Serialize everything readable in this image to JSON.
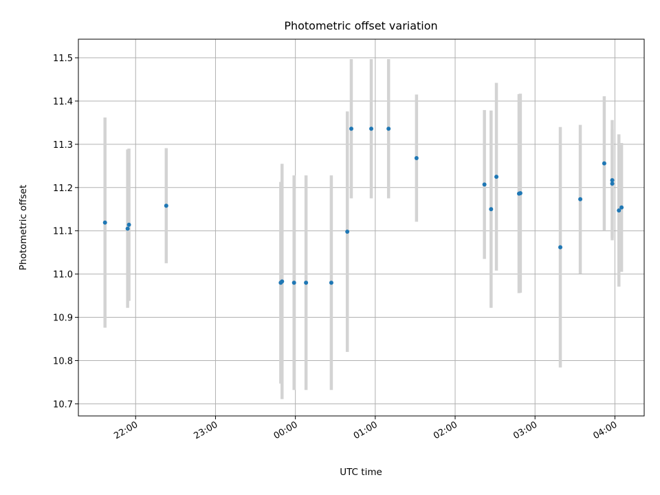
{
  "chart_data": {
    "type": "scatter",
    "title": "Photometric offset variation",
    "xlabel": "UTC time",
    "ylabel": "Photometric offset",
    "x_axis_kind": "time",
    "xlim": [
      "21:17",
      "04:22"
    ],
    "ylim": [
      10.672,
      11.543
    ],
    "grid": true,
    "x_ticks": [
      "22:00",
      "23:00",
      "00:00",
      "01:00",
      "02:00",
      "03:00",
      "04:00"
    ],
    "y_ticks": [
      "10.7",
      "10.8",
      "10.9",
      "11.0",
      "11.1",
      "11.2",
      "11.3",
      "11.4",
      "11.5"
    ],
    "colors": {
      "points": "#1f77b4",
      "errorbars": "#d3d3d3",
      "grid": "#b0b0b0"
    },
    "points": [
      {
        "time": "21:37",
        "y": 11.119,
        "err": 0.243
      },
      {
        "time": "21:54",
        "y": 11.105,
        "err": 0.183
      },
      {
        "time": "21:55",
        "y": 11.114,
        "err": 0.176
      },
      {
        "time": "22:23",
        "y": 11.158,
        "err": 0.133
      },
      {
        "time": "23:49",
        "y": 10.98,
        "err": 0.233
      },
      {
        "time": "23:50",
        "y": 10.983,
        "err": 0.272
      },
      {
        "time": "23:59",
        "y": 10.98,
        "err": 0.248
      },
      {
        "time": "00:08",
        "y": 10.98,
        "err": 0.248
      },
      {
        "time": "00:27",
        "y": 10.98,
        "err": 0.248
      },
      {
        "time": "00:39",
        "y": 11.098,
        "err": 0.278
      },
      {
        "time": "00:42",
        "y": 11.336,
        "err": 0.161
      },
      {
        "time": "00:57",
        "y": 11.336,
        "err": 0.161
      },
      {
        "time": "01:10",
        "y": 11.336,
        "err": 0.161
      },
      {
        "time": "01:31",
        "y": 11.268,
        "err": 0.147
      },
      {
        "time": "02:22",
        "y": 11.207,
        "err": 0.172
      },
      {
        "time": "02:27",
        "y": 11.15,
        "err": 0.228
      },
      {
        "time": "02:31",
        "y": 11.225,
        "err": 0.217
      },
      {
        "time": "02:48",
        "y": 11.186,
        "err": 0.23
      },
      {
        "time": "02:49",
        "y": 11.187,
        "err": 0.23
      },
      {
        "time": "03:19",
        "y": 11.062,
        "err": 0.278
      },
      {
        "time": "03:34",
        "y": 11.173,
        "err": 0.172
      },
      {
        "time": "03:52",
        "y": 11.256,
        "err": 0.155
      },
      {
        "time": "03:58",
        "y": 11.209,
        "err": 0.125
      },
      {
        "time": "03:58",
        "y": 11.217,
        "err": 0.139
      },
      {
        "time": "04:03",
        "y": 11.147,
        "err": 0.176
      },
      {
        "time": "04:05",
        "y": 11.154,
        "err": 0.149
      }
    ]
  }
}
